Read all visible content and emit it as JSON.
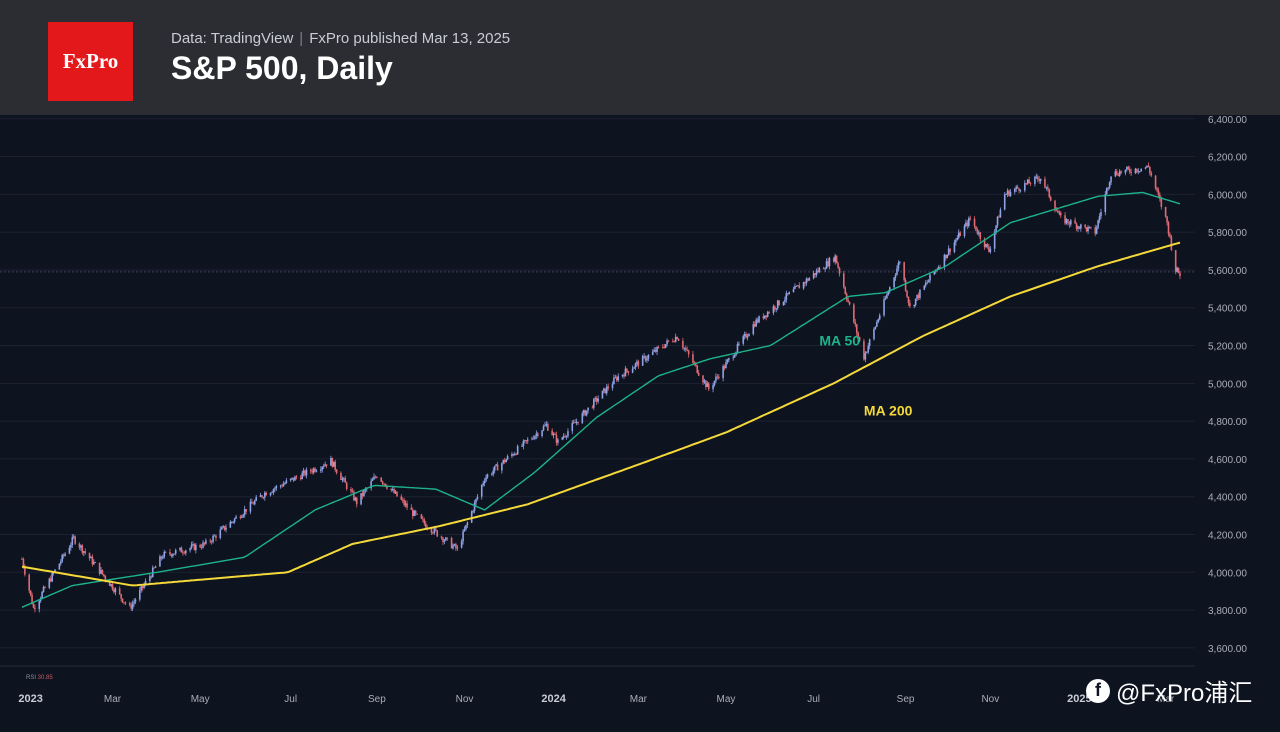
{
  "header": {
    "logo_text": "FxPro",
    "data_source": "Data: TradingView",
    "publisher": "FxPro published Mar 13, 2025",
    "title": "S&P 500, Daily",
    "background": "#2b2d33",
    "logo_color": "#e3181b"
  },
  "social": {
    "icon": "facebook-icon",
    "handle": "@FxPro浦汇"
  },
  "chart_data": {
    "type": "candlestick",
    "title": "S&P 500, Daily",
    "y_ticks": [
      "6,400.00",
      "6,200.00",
      "6,000.00",
      "5,800.00",
      "5,600.00",
      "5,400.00",
      "5,200.00",
      "5,000.00",
      "4,800.00",
      "4,600.00",
      "4,400.00",
      "4,200.00",
      "4,000.00",
      "3,800.00",
      "3,600.00"
    ],
    "y_tick_values": [
      6400,
      6200,
      6000,
      5800,
      5600,
      5400,
      5200,
      5000,
      4800,
      4600,
      4400,
      4200,
      4000,
      3800,
      3600
    ],
    "ylim": [
      3520,
      6420
    ],
    "x_range": [
      "2022-12-28",
      "2025-03-13"
    ],
    "x_ticks": [
      {
        "label": "2023",
        "date": "2023-01-03",
        "bold": true
      },
      {
        "label": "Mar",
        "date": "2023-03-01"
      },
      {
        "label": "May",
        "date": "2023-05-01"
      },
      {
        "label": "Jul",
        "date": "2023-07-03"
      },
      {
        "label": "Sep",
        "date": "2023-09-01"
      },
      {
        "label": "Nov",
        "date": "2023-11-01"
      },
      {
        "label": "2024",
        "date": "2024-01-02",
        "bold": true
      },
      {
        "label": "Mar",
        "date": "2024-03-01"
      },
      {
        "label": "May",
        "date": "2024-05-01"
      },
      {
        "label": "Jul",
        "date": "2024-07-01"
      },
      {
        "label": "Sep",
        "date": "2024-09-03"
      },
      {
        "label": "Nov",
        "date": "2024-11-01"
      },
      {
        "label": "2025",
        "date": "2025-01-02",
        "bold": true
      },
      {
        "label": "Mar",
        "date": "2025-03-03"
      }
    ],
    "price_anchors": [
      [
        "2022-12-28",
        4070
      ],
      [
        "2023-01-05",
        3810
      ],
      [
        "2023-02-02",
        4180
      ],
      [
        "2023-03-13",
        3810
      ],
      [
        "2023-04-05",
        4090
      ],
      [
        "2023-05-05",
        4150
      ],
      [
        "2023-06-15",
        4420
      ],
      [
        "2023-07-31",
        4590
      ],
      [
        "2023-08-18",
        4370
      ],
      [
        "2023-09-01",
        4515
      ],
      [
        "2023-09-29",
        4290
      ],
      [
        "2023-10-27",
        4120
      ],
      [
        "2023-11-15",
        4500
      ],
      [
        "2023-12-28",
        4780
      ],
      [
        "2024-01-05",
        4690
      ],
      [
        "2024-02-15",
        5030
      ],
      [
        "2024-03-28",
        5250
      ],
      [
        "2024-04-19",
        4970
      ],
      [
        "2024-05-21",
        5320
      ],
      [
        "2024-07-16",
        5670
      ],
      [
        "2024-08-05",
        5140
      ],
      [
        "2024-08-30",
        5650
      ],
      [
        "2024-09-06",
        5400
      ],
      [
        "2024-10-18",
        5870
      ],
      [
        "2024-10-31",
        5700
      ],
      [
        "2024-11-11",
        6000
      ],
      [
        "2024-12-06",
        6090
      ],
      [
        "2024-12-20",
        5870
      ],
      [
        "2025-01-13",
        5800
      ],
      [
        "2025-01-24",
        6110
      ],
      [
        "2025-02-19",
        6145
      ],
      [
        "2025-03-04",
        5850
      ],
      [
        "2025-03-10",
        5600
      ],
      [
        "2025-03-13",
        5580
      ]
    ],
    "ma50_anchors": [
      [
        "2022-12-28",
        3815
      ],
      [
        "2023-02-01",
        3930
      ],
      [
        "2023-04-01",
        4000
      ],
      [
        "2023-06-01",
        4080
      ],
      [
        "2023-07-20",
        4330
      ],
      [
        "2023-08-30",
        4460
      ],
      [
        "2023-10-12",
        4440
      ],
      [
        "2023-11-15",
        4330
      ],
      [
        "2023-12-20",
        4530
      ],
      [
        "2024-02-01",
        4820
      ],
      [
        "2024-03-15",
        5040
      ],
      [
        "2024-04-20",
        5130
      ],
      [
        "2024-06-01",
        5200
      ],
      [
        "2024-07-25",
        5460
      ],
      [
        "2024-08-20",
        5480
      ],
      [
        "2024-10-01",
        5620
      ],
      [
        "2024-11-15",
        5850
      ],
      [
        "2025-01-15",
        5990
      ],
      [
        "2025-02-15",
        6010
      ],
      [
        "2025-03-13",
        5950
      ]
    ],
    "ma200_anchors": [
      [
        "2022-12-28",
        4030
      ],
      [
        "2023-03-15",
        3930
      ],
      [
        "2023-05-15",
        3970
      ],
      [
        "2023-07-01",
        4000
      ],
      [
        "2023-08-15",
        4150
      ],
      [
        "2023-10-15",
        4245
      ],
      [
        "2023-12-15",
        4360
      ],
      [
        "2024-03-01",
        4570
      ],
      [
        "2024-05-01",
        4740
      ],
      [
        "2024-07-15",
        5000
      ],
      [
        "2024-09-15",
        5250
      ],
      [
        "2024-11-15",
        5460
      ],
      [
        "2025-01-15",
        5620
      ],
      [
        "2025-03-13",
        5745
      ]
    ],
    "series_labels": [
      {
        "text": "MA 50",
        "color": "#1db38a",
        "anchor_date": "2024-07-05",
        "anchor_value": 5200
      },
      {
        "text": "MA 200",
        "color": "#f5d93a",
        "anchor_date": "2024-08-05",
        "anchor_value": 4830
      }
    ],
    "last_price_line": 5590,
    "rsi_label": "RSI",
    "rsi_value": "30.85",
    "colors": {
      "up": "#8fa3e6",
      "down": "#e06b73",
      "ma50": "#1db38a",
      "ma200": "#f5d93a",
      "grid": "#1d2230",
      "dotted": "#3a4258"
    }
  }
}
